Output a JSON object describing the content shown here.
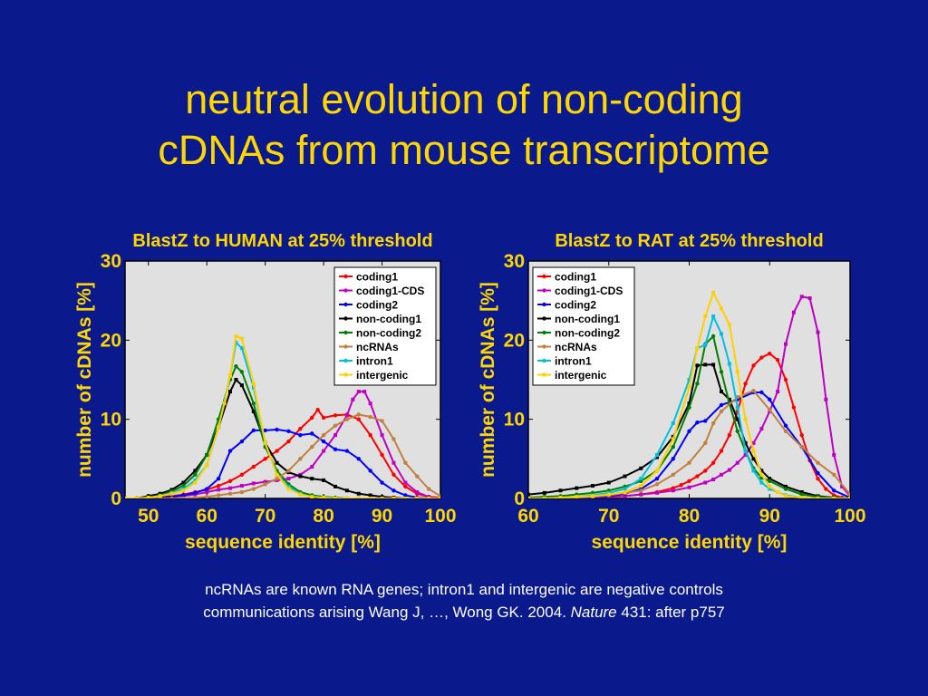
{
  "slide": {
    "title_line1": "neutral evolution of non-coding",
    "title_line2": "cDNAs from mouse transcriptome",
    "caption_line1": "ncRNAs are known RNA genes; intron1 and intergenic are negative controls",
    "caption_line2_prefix": "communications arising Wang J, …, Wong GK. 2004. ",
    "caption_line2_journal": "Nature",
    "caption_line2_suffix": " 431: after p757"
  },
  "colors": {
    "background": "#0a1a8c",
    "text_accent": "#ffd700",
    "plot_bg": "#e0e0e0"
  },
  "chart_data": [
    {
      "type": "line",
      "title": "BlastZ to HUMAN at 25% threshold",
      "xlabel": "sequence identity [%]",
      "ylabel": "number of cDNAs [%]",
      "xlim": [
        46,
        100
      ],
      "ylim": [
        0,
        30
      ],
      "xticks": [
        50,
        60,
        70,
        80,
        90,
        100
      ],
      "yticks": [
        0,
        10,
        20,
        30
      ],
      "legend_position": "top-right",
      "series": [
        {
          "name": "coding1",
          "color": "#ff0000",
          "marker": "circle",
          "x": [
            46,
            48,
            50,
            52,
            54,
            56,
            58,
            60,
            62,
            64,
            66,
            68,
            70,
            72,
            74,
            76,
            78,
            79,
            80,
            82,
            84,
            86,
            88,
            90,
            92,
            94,
            96,
            98,
            100
          ],
          "y": [
            0,
            0,
            0.1,
            0.2,
            0.3,
            0.5,
            0.8,
            1.1,
            1.6,
            2.2,
            3,
            4,
            5,
            6,
            7.2,
            8.8,
            10.2,
            11.2,
            10.2,
            10.5,
            10.6,
            10,
            8,
            5.5,
            3,
            1.5,
            0.6,
            0.2,
            0.1
          ]
        },
        {
          "name": "coding1-CDS",
          "color": "#c000c0",
          "marker": "square",
          "x": [
            46,
            48,
            50,
            52,
            54,
            56,
            58,
            60,
            62,
            64,
            66,
            68,
            70,
            72,
            74,
            76,
            78,
            80,
            82,
            84,
            85,
            86,
            87,
            88,
            90,
            92,
            94,
            96,
            98,
            100
          ],
          "y": [
            0,
            0,
            0,
            0.1,
            0.2,
            0.3,
            0.5,
            0.8,
            1.1,
            1.3,
            1.6,
            1.9,
            2.1,
            2.3,
            2.5,
            3,
            4,
            6,
            8,
            10.5,
            12.5,
            13.5,
            13.5,
            12,
            8,
            4.5,
            2,
            0.8,
            0.2,
            0
          ]
        },
        {
          "name": "coding2",
          "color": "#0000ff",
          "marker": "circle",
          "x": [
            46,
            48,
            50,
            52,
            54,
            56,
            58,
            60,
            62,
            64,
            66,
            68,
            70,
            72,
            74,
            76,
            78,
            80,
            82,
            84,
            86,
            88,
            90,
            92,
            94,
            96,
            98,
            100
          ],
          "y": [
            0,
            0,
            0,
            0.1,
            0.2,
            0.4,
            0.7,
            1.2,
            2.5,
            6,
            7.2,
            8.6,
            8.6,
            8.7,
            8.5,
            8,
            8.2,
            7.2,
            6.2,
            6,
            5,
            3.5,
            2,
            1,
            0.4,
            0.1,
            0,
            0
          ]
        },
        {
          "name": "non-coding1",
          "color": "#000000",
          "marker": "square",
          "x": [
            46,
            48,
            50,
            52,
            54,
            56,
            58,
            60,
            62,
            64,
            65,
            66,
            68,
            70,
            72,
            74,
            76,
            78,
            80,
            82,
            84,
            86,
            88,
            90,
            92,
            94,
            96,
            98,
            100
          ],
          "y": [
            0,
            0,
            0.3,
            0.6,
            1.1,
            2,
            3.5,
            5.5,
            9,
            13.5,
            15,
            14.3,
            11,
            7,
            4.5,
            3.3,
            2.8,
            2.5,
            2.3,
            1.5,
            1,
            0.6,
            0.4,
            0.2,
            0.1,
            0,
            0,
            0,
            0
          ]
        },
        {
          "name": "non-coding2",
          "color": "#008000",
          "marker": "circle",
          "x": [
            46,
            48,
            50,
            52,
            54,
            56,
            58,
            60,
            62,
            64,
            65,
            66,
            68,
            70,
            72,
            74,
            76,
            78,
            80,
            82,
            84,
            86,
            88,
            90,
            92,
            94,
            96,
            98,
            100
          ],
          "y": [
            0,
            0,
            0.1,
            0.4,
            0.9,
            1.6,
            3,
            5.5,
            10,
            15,
            16.7,
            16,
            12,
            6.5,
            3.5,
            1.8,
            0.8,
            0.4,
            0.2,
            0.1,
            0,
            0,
            0,
            0,
            0,
            0,
            0,
            0,
            0
          ]
        },
        {
          "name": "ncRNAs",
          "color": "#c08040",
          "marker": "circle",
          "x": [
            46,
            48,
            50,
            52,
            54,
            56,
            58,
            60,
            62,
            64,
            66,
            68,
            70,
            72,
            74,
            76,
            78,
            80,
            82,
            84,
            86,
            88,
            90,
            92,
            94,
            96,
            98,
            100
          ],
          "y": [
            0,
            0,
            0,
            0,
            0,
            0,
            0.1,
            0.2,
            0.4,
            0.6,
            0.8,
            1.2,
            1.8,
            2.5,
            3.5,
            5,
            6.5,
            8,
            9.2,
            10,
            10.6,
            10.3,
            9.8,
            7.5,
            4.5,
            2.8,
            1.2,
            0.3
          ]
        },
        {
          "name": "intron1",
          "color": "#00c0e0",
          "marker": "square",
          "x": [
            46,
            48,
            50,
            52,
            54,
            56,
            58,
            60,
            62,
            64,
            65,
            66,
            68,
            70,
            72,
            74,
            76,
            78,
            80,
            82,
            84,
            86,
            88,
            90,
            92,
            94,
            96,
            98,
            100
          ],
          "y": [
            0,
            0,
            0.1,
            0.3,
            0.7,
            1.2,
            2.3,
            4.2,
            9,
            15.5,
            19.7,
            19,
            14,
            7,
            3,
            1.5,
            0.6,
            0.2,
            0.1,
            0,
            0,
            0,
            0,
            0,
            0,
            0,
            0,
            0,
            0
          ]
        },
        {
          "name": "intergenic",
          "color": "#ffd000",
          "marker": "square",
          "x": [
            46,
            48,
            50,
            52,
            54,
            56,
            58,
            60,
            62,
            63,
            64,
            65,
            66,
            68,
            70,
            72,
            74,
            76,
            78,
            80,
            82,
            84,
            86,
            88,
            90,
            92,
            94,
            96,
            98,
            100
          ],
          "y": [
            0,
            0,
            0.1,
            0.3,
            0.6,
            1,
            2,
            4.2,
            9,
            12,
            15.5,
            20.5,
            20.2,
            14.5,
            7,
            3,
            1.2,
            0.5,
            0.2,
            0.1,
            0,
            0,
            0,
            0,
            0,
            0,
            0,
            0,
            0,
            0
          ]
        }
      ]
    },
    {
      "type": "line",
      "title": "BlastZ to RAT at 25% threshold",
      "xlabel": "sequence identity [%]",
      "ylabel": "number of cDNAs [%]",
      "xlim": [
        60,
        100
      ],
      "ylim": [
        0,
        30
      ],
      "xticks": [
        60,
        70,
        80,
        90,
        100
      ],
      "yticks": [
        0,
        10,
        20,
        30
      ],
      "legend_position": "top-left",
      "series": [
        {
          "name": "coding1",
          "color": "#ff0000",
          "marker": "circle",
          "x": [
            60,
            62,
            64,
            66,
            68,
            70,
            72,
            74,
            76,
            78,
            79,
            80,
            81,
            82,
            83,
            84,
            85,
            86,
            87,
            88,
            89,
            90,
            91,
            92,
            93,
            94,
            95,
            96,
            97,
            98,
            99,
            100
          ],
          "y": [
            0,
            0,
            0,
            0,
            0.1,
            0.2,
            0.3,
            0.5,
            0.8,
            1.3,
            1.7,
            2.2,
            2.8,
            3.5,
            4.5,
            6,
            8,
            11,
            14.5,
            16.8,
            17.8,
            18.3,
            17.5,
            15,
            11.5,
            8,
            4.8,
            2.5,
            1.2,
            0.4,
            0.1,
            0
          ]
        },
        {
          "name": "coding1-CDS",
          "color": "#c000c0",
          "marker": "square",
          "x": [
            60,
            62,
            64,
            66,
            68,
            70,
            72,
            74,
            76,
            78,
            80,
            82,
            83,
            84,
            85,
            86,
            87,
            88,
            89,
            90,
            91,
            92,
            93,
            94,
            95,
            96,
            97,
            98,
            99,
            100
          ],
          "y": [
            0,
            0,
            0,
            0,
            0.1,
            0.2,
            0.3,
            0.5,
            0.7,
            1,
            1.4,
            2,
            2.4,
            3,
            3.6,
            4.5,
            5.5,
            7,
            8.8,
            11,
            13.5,
            19.5,
            23.5,
            25.5,
            25.3,
            21,
            12.5,
            5.5,
            1.5,
            0.3
          ]
        },
        {
          "name": "coding2",
          "color": "#0000ff",
          "marker": "circle",
          "x": [
            60,
            62,
            64,
            66,
            68,
            70,
            72,
            74,
            76,
            78,
            80,
            81,
            82,
            84,
            86,
            88,
            89,
            90,
            92,
            94,
            96,
            98,
            100
          ],
          "y": [
            0,
            0,
            0,
            0,
            0.1,
            0.3,
            0.6,
            1.2,
            2.5,
            5,
            8.5,
            9.6,
            9.8,
            11.8,
            12.5,
            13.4,
            13.4,
            12.5,
            9.2,
            6.5,
            3.2,
            1,
            0.1
          ]
        },
        {
          "name": "non-coding1",
          "color": "#000000",
          "marker": "square",
          "x": [
            60,
            62,
            64,
            66,
            68,
            70,
            72,
            74,
            76,
            78,
            80,
            81,
            82,
            83,
            84,
            85,
            86,
            87,
            88,
            89,
            90,
            92,
            94,
            96,
            98,
            100
          ],
          "y": [
            0.5,
            0.7,
            1,
            1.3,
            1.6,
            2,
            2.8,
            3.8,
            5.2,
            7.8,
            12,
            16.8,
            16.9,
            16.9,
            13.5,
            12.5,
            10,
            7,
            5,
            3.5,
            2.5,
            1.5,
            0.8,
            0.3,
            0.1,
            0
          ]
        },
        {
          "name": "non-coding2",
          "color": "#008000",
          "marker": "circle",
          "x": [
            60,
            62,
            64,
            66,
            68,
            70,
            72,
            74,
            76,
            78,
            80,
            81,
            82,
            83,
            84,
            85,
            86,
            87,
            88,
            89,
            90,
            92,
            94,
            96,
            98,
            100
          ],
          "y": [
            0.1,
            0.2,
            0.3,
            0.5,
            0.7,
            1,
            1.5,
            2.2,
            3.5,
            6.5,
            11.5,
            14.5,
            19.5,
            20.5,
            16,
            12,
            8.5,
            6,
            3.8,
            2.6,
            2.2,
            1.2,
            0.5,
            0.2,
            0.1,
            0
          ]
        },
        {
          "name": "ncRNAs",
          "color": "#c08040",
          "marker": "circle",
          "x": [
            60,
            62,
            64,
            66,
            68,
            70,
            72,
            74,
            76,
            78,
            80,
            82,
            83,
            84,
            86,
            88,
            90,
            92,
            94,
            96,
            98,
            100
          ],
          "y": [
            0,
            0,
            0,
            0.1,
            0.2,
            0.4,
            0.7,
            1,
            1.8,
            3,
            4.5,
            7,
            9.5,
            11,
            12.8,
            13.6,
            11.2,
            8.5,
            6.5,
            4.5,
            3,
            0.5
          ]
        },
        {
          "name": "intron1",
          "color": "#00c0e0",
          "marker": "square",
          "x": [
            60,
            62,
            64,
            66,
            68,
            70,
            72,
            74,
            76,
            78,
            80,
            81,
            82,
            83,
            84,
            85,
            86,
            87,
            88,
            89,
            90,
            92,
            94,
            96,
            98,
            100
          ],
          "y": [
            0,
            0,
            0.1,
            0.2,
            0.4,
            0.7,
            1.2,
            2.5,
            5.5,
            9.5,
            15,
            19,
            19.4,
            23,
            20.8,
            17,
            11.5,
            6,
            3.5,
            2,
            1.2,
            0.4,
            0.1,
            0,
            0,
            0
          ]
        },
        {
          "name": "intergenic",
          "color": "#ffd000",
          "marker": "square",
          "x": [
            60,
            62,
            64,
            66,
            68,
            70,
            72,
            74,
            76,
            78,
            80,
            81,
            82,
            83,
            84,
            85,
            86,
            87,
            88,
            89,
            90,
            91,
            92,
            94,
            96,
            98,
            100
          ],
          "y": [
            0,
            0,
            0.1,
            0.2,
            0.3,
            0.5,
            0.8,
            1.6,
            3.5,
            7.5,
            14,
            19,
            23,
            26,
            24,
            22,
            16,
            10,
            6,
            3,
            1.5,
            0.8,
            0.3,
            0.1,
            0,
            0,
            0
          ]
        }
      ]
    }
  ]
}
